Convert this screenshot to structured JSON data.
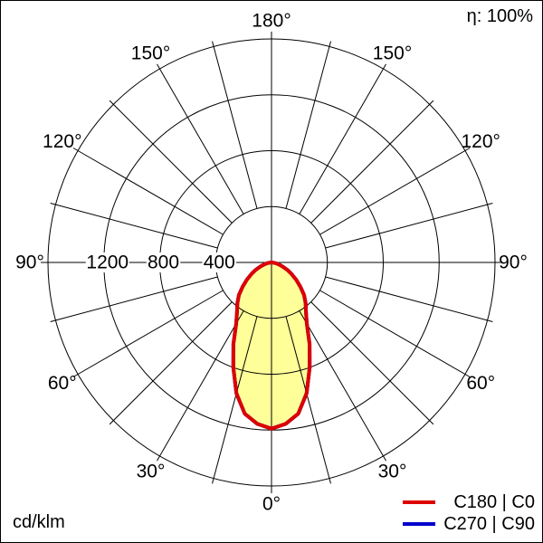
{
  "header": {
    "efficiency_label": "η: 100%"
  },
  "footer": {
    "units_label": "cd/klm"
  },
  "legend": {
    "position": "bottom-right",
    "items": [
      {
        "label": "C180 | C0",
        "color": "#dd0000"
      },
      {
        "label": "C270 | C90",
        "color": "#0000cc"
      }
    ]
  },
  "chart_data": {
    "type": "polar_photometric",
    "title": "",
    "units": "cd/klm",
    "efficiency": "η: 100%",
    "fill_color": "#ffff99",
    "grid_color": "#000000",
    "legend_position": "bottom-right",
    "radial_axis": {
      "max": 1600,
      "step": 400,
      "ticks": [
        {
          "label": "400",
          "value": 400
        },
        {
          "label": "800",
          "value": 800
        },
        {
          "label": "1200",
          "value": 1200
        }
      ]
    },
    "angle_grid_step_deg": 15,
    "angle_label_step_deg": 30,
    "angle_labels": [
      {
        "text": "0°",
        "screen_deg": 0
      },
      {
        "text": "30°",
        "screen_deg": 30
      },
      {
        "text": "30°",
        "screen_deg": -30
      },
      {
        "text": "60°",
        "screen_deg": 60
      },
      {
        "text": "60°",
        "screen_deg": -60
      },
      {
        "text": "90°",
        "screen_deg": 90
      },
      {
        "text": "90°",
        "screen_deg": -90
      },
      {
        "text": "120°",
        "screen_deg": 120
      },
      {
        "text": "120°",
        "screen_deg": -120
      },
      {
        "text": "150°",
        "screen_deg": 150
      },
      {
        "text": "150°",
        "screen_deg": -150
      },
      {
        "text": "180°",
        "screen_deg": 180
      }
    ],
    "series": [
      {
        "name": "C180 | C0",
        "color": "#dd0000",
        "symmetric": true,
        "gamma_deg": [
          0,
          5,
          10,
          15,
          20,
          25,
          30,
          35,
          40,
          45,
          50,
          55,
          60,
          65,
          70,
          75,
          80,
          85,
          90
        ],
        "cd_per_klm": [
          1190,
          1160,
          1100,
          970,
          800,
          645,
          505,
          430,
          380,
          330,
          270,
          215,
          165,
          125,
          85,
          55,
          30,
          12,
          0
        ]
      },
      {
        "name": "C270 | C90",
        "color": "#0000cc",
        "symmetric": true,
        "gamma_deg": [
          0,
          5,
          10,
          15,
          20,
          25,
          30,
          35,
          40,
          45,
          50,
          55,
          60,
          65,
          70,
          75,
          80,
          85,
          90
        ],
        "cd_per_klm": [
          1190,
          1160,
          1100,
          970,
          800,
          645,
          505,
          430,
          380,
          330,
          270,
          215,
          165,
          125,
          85,
          55,
          30,
          12,
          0
        ]
      }
    ]
  }
}
